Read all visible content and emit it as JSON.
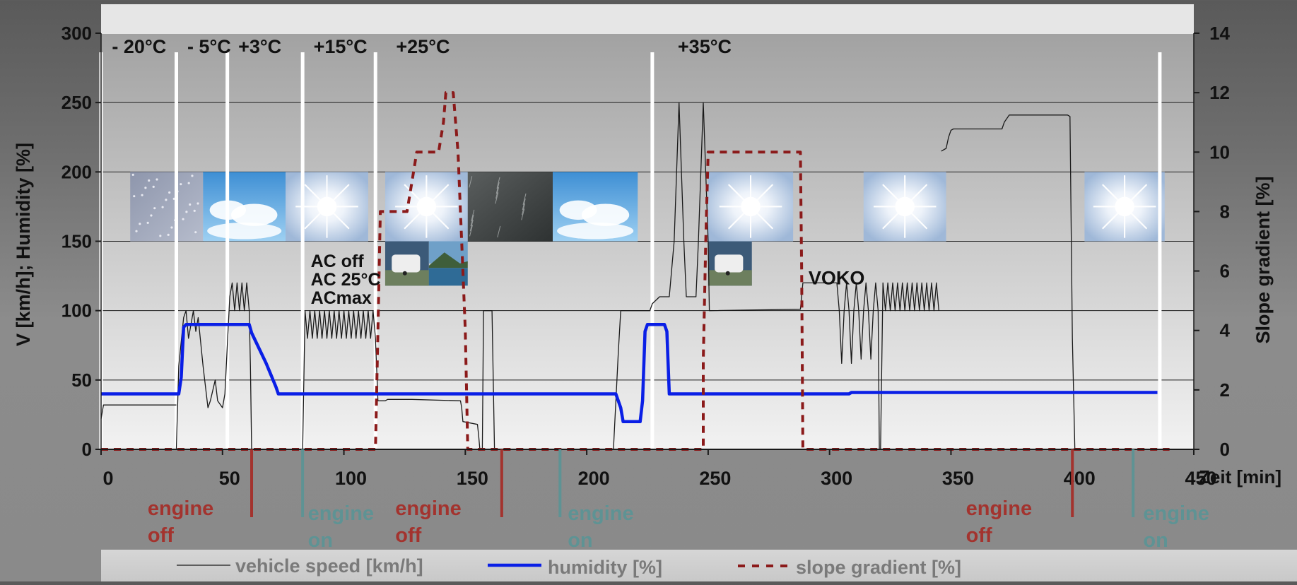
{
  "chart_data": {
    "type": "line",
    "x_axis": {
      "label": "Zeit [min]",
      "range": [
        0,
        450
      ],
      "ticks": [
        0,
        50,
        100,
        150,
        200,
        250,
        300,
        350,
        400,
        450
      ]
    },
    "y_left": {
      "label": "V [km/h];   Humidity  [%]",
      "range": [
        0,
        300
      ],
      "ticks": [
        0,
        50,
        100,
        150,
        200,
        250,
        300
      ]
    },
    "y_right": {
      "label": "Slope gradient [%]",
      "range": [
        0,
        14
      ],
      "ticks": [
        0,
        2,
        4,
        6,
        8,
        10,
        12,
        14
      ]
    },
    "grid": true,
    "legend_position": "bottom",
    "legend": [
      "vehicle speed [km/h]",
      "humidity [%]",
      "slope gradient [%]"
    ],
    "colors": {
      "speed": "#1a1a1a",
      "humidity": "#0a1fe6",
      "slope": "#8b1a1a",
      "engine_off": "#a3332e",
      "engine_on": "#5e9394",
      "divider": "#ffffff"
    },
    "temperature_labels": [
      {
        "text": "- 20°C",
        "x": 1
      },
      {
        "text": "- 5°C",
        "x": 32
      },
      {
        "text": "+3°C",
        "x": 53
      },
      {
        "text": "+15°C",
        "x": 84
      },
      {
        "text": "+25°C",
        "x": 118
      },
      {
        "text": "+35°C",
        "x": 234
      }
    ],
    "dividers": [
      0,
      31,
      52,
      83,
      113,
      227,
      436
    ],
    "engine_events": [
      {
        "x": 62,
        "state": "off",
        "label": [
          "engine",
          "off"
        ],
        "label_x": 18
      },
      {
        "x": 83,
        "state": "on",
        "label": [
          "engine",
          "on"
        ],
        "label_x": 84
      },
      {
        "x": 165,
        "state": "off",
        "label": [
          "engine",
          "off"
        ],
        "label_x": 120
      },
      {
        "x": 189,
        "state": "on",
        "label": [
          "engine",
          "on"
        ],
        "label_x": 191
      },
      {
        "x": 400,
        "state": "off",
        "label": [
          "engine",
          "off"
        ],
        "label_x": 355
      },
      {
        "x": 425,
        "state": "on",
        "label": [
          "engine",
          "on"
        ],
        "label_x": 428
      }
    ],
    "annotations": [
      {
        "lines": [
          "AC off",
          "AC 25°C",
          "ACmax"
        ],
        "x": 84,
        "y": 140
      },
      {
        "text": "VOKO",
        "x": 289,
        "y": 123
      }
    ],
    "weather_images": [
      {
        "kind": "snow",
        "x0": 12,
        "x1": 42,
        "y0": 150,
        "y1": 200
      },
      {
        "kind": "clouds",
        "x0": 42,
        "x1": 76,
        "y0": 150,
        "y1": 200
      },
      {
        "kind": "sun",
        "x0": 76,
        "x1": 110,
        "y0": 150,
        "y1": 200
      },
      {
        "kind": "sun",
        "x0": 117,
        "x1": 151,
        "y0": 150,
        "y1": 200
      },
      {
        "kind": "rain",
        "x0": 151,
        "x1": 186,
        "y0": 150,
        "y1": 200
      },
      {
        "kind": "clouds",
        "x0": 186,
        "x1": 221,
        "y0": 150,
        "y1": 200
      },
      {
        "kind": "sun",
        "x0": 250,
        "x1": 285,
        "y0": 150,
        "y1": 200
      },
      {
        "kind": "sun",
        "x0": 314,
        "x1": 348,
        "y0": 150,
        "y1": 200
      },
      {
        "kind": "sun",
        "x0": 405,
        "x1": 438,
        "y0": 150,
        "y1": 200
      },
      {
        "kind": "caravan",
        "x0": 117,
        "x1": 135,
        "y0": 118,
        "y1": 150
      },
      {
        "kind": "lake",
        "x0": 135,
        "x1": 151,
        "y0": 118,
        "y1": 150
      },
      {
        "kind": "caravan",
        "x0": 250,
        "x1": 268,
        "y0": 118,
        "y1": 150
      }
    ],
    "series": [
      {
        "name": "vehicle speed [km/h]",
        "axis": "left",
        "style": "thin",
        "segments": [
          [
            [
              0,
              22
            ],
            [
              1,
              32
            ],
            [
              31,
              32
            ]
          ],
          [
            [
              31,
              0
            ],
            [
              32,
              60
            ],
            [
              34,
              95
            ],
            [
              35,
              100
            ],
            [
              36,
              80
            ],
            [
              38,
              100
            ],
            [
              39,
              85
            ],
            [
              40,
              95
            ],
            [
              42,
              60
            ],
            [
              44,
              30
            ],
            [
              45,
              35
            ],
            [
              47,
              50
            ],
            [
              48,
              35
            ],
            [
              50,
              30
            ],
            [
              51,
              40
            ],
            [
              52,
              75
            ],
            [
              53,
              110
            ],
            [
              54,
              120
            ],
            [
              55,
              100
            ],
            [
              56,
              120
            ],
            [
              57,
              100
            ],
            [
              58,
              120
            ],
            [
              59,
              100
            ],
            [
              60,
              120
            ],
            [
              61,
              100
            ],
            [
              61.5,
              60
            ],
            [
              62,
              0
            ]
          ],
          [
            [
              83,
              0
            ],
            [
              84,
              100
            ],
            [
              85,
              80
            ],
            [
              86,
              100
            ],
            [
              87,
              80
            ],
            [
              88,
              100
            ],
            [
              89,
              80
            ],
            [
              90,
              100
            ],
            [
              91,
              80
            ],
            [
              92,
              100
            ],
            [
              93,
              80
            ],
            [
              94,
              100
            ],
            [
              95,
              80
            ],
            [
              96,
              100
            ],
            [
              97,
              80
            ],
            [
              98,
              100
            ],
            [
              99,
              80
            ],
            [
              100,
              100
            ],
            [
              101,
              80
            ],
            [
              102,
              100
            ],
            [
              103,
              80
            ],
            [
              104,
              100
            ],
            [
              105,
              80
            ],
            [
              106,
              100
            ],
            [
              107,
              80
            ],
            [
              108,
              100
            ],
            [
              109,
              80
            ],
            [
              110,
              100
            ],
            [
              111,
              80
            ],
            [
              112,
              100
            ],
            [
              113,
              80
            ],
            [
              114,
              35
            ],
            [
              117,
              35
            ],
            [
              118,
              36
            ],
            [
              128,
              36
            ],
            [
              148,
              35
            ],
            [
              148.5,
              30
            ],
            [
              149,
              20
            ],
            [
              155,
              18
            ],
            [
              155.5,
              10
            ],
            [
              156,
              0
            ],
            [
              157,
              0
            ],
            [
              157.5,
              100
            ],
            [
              161,
              100
            ],
            [
              162,
              0
            ]
          ],
          [
            [
              211,
              0
            ],
            [
              213,
              70
            ],
            [
              214,
              100
            ],
            [
              226,
              100
            ],
            [
              227,
              105
            ],
            [
              230,
              110
            ],
            [
              234,
              110
            ],
            [
              236,
              150
            ],
            [
              238,
              250
            ],
            [
              240,
              150
            ],
            [
              241,
              110
            ],
            [
              245,
              110
            ],
            [
              246,
              150
            ],
            [
              248,
              250
            ],
            [
              250,
              150
            ],
            [
              250.5,
              100
            ],
            [
              288,
              101
            ],
            [
              289,
              120
            ],
            [
              303,
              120
            ],
            [
              304,
              100
            ],
            [
              305,
              62
            ],
            [
              306,
              100
            ],
            [
              307,
              120
            ],
            [
              308,
              100
            ],
            [
              309,
              62
            ],
            [
              310,
              100
            ],
            [
              311,
              120
            ],
            [
              312,
              100
            ],
            [
              313,
              65
            ],
            [
              314,
              100
            ],
            [
              315,
              120
            ],
            [
              316,
              100
            ],
            [
              317,
              65
            ],
            [
              318,
              100
            ],
            [
              319,
              120
            ],
            [
              320,
              100
            ],
            [
              320.5,
              0
            ],
            [
              321,
              0
            ],
            [
              322,
              120
            ],
            [
              323,
              100
            ],
            [
              324,
              120
            ],
            [
              325,
              100
            ],
            [
              326,
              120
            ],
            [
              327,
              100
            ],
            [
              328,
              120
            ],
            [
              329,
              100
            ],
            [
              330,
              120
            ],
            [
              331,
              100
            ],
            [
              332,
              120
            ],
            [
              333,
              100
            ],
            [
              334,
              120
            ],
            [
              335,
              100
            ],
            [
              336,
              120
            ],
            [
              337,
              100
            ],
            [
              338,
              120
            ],
            [
              339,
              100
            ],
            [
              340,
              120
            ],
            [
              341,
              100
            ],
            [
              342,
              120
            ],
            [
              343,
              100
            ],
            [
              344,
              120
            ],
            [
              345,
              100
            ]
          ],
          [
            [
              346,
              215
            ],
            [
              348,
              217
            ],
            [
              349,
              225
            ],
            [
              350,
              230
            ],
            [
              351,
              231
            ],
            [
              371,
              231
            ],
            [
              372,
              236
            ],
            [
              374,
              241
            ],
            [
              398,
              241
            ],
            [
              399,
              240
            ],
            [
              400,
              80
            ],
            [
              401,
              0
            ]
          ],
          [
            [
              401,
              0
            ],
            [
              434,
              0
            ]
          ]
        ]
      },
      {
        "name": "humidity [%]",
        "axis": "left",
        "style": "thick",
        "segments": [
          [
            [
              0,
              40
            ],
            [
              32,
              40
            ],
            [
              33,
              52
            ],
            [
              34,
              88
            ],
            [
              35,
              90
            ],
            [
              61,
              90
            ],
            [
              62,
              84
            ],
            [
              68,
              62
            ],
            [
              72,
              45
            ],
            [
              73,
              40
            ],
            [
              212,
              40
            ],
            [
              214,
              30
            ],
            [
              215,
              20
            ],
            [
              222,
              20
            ],
            [
              223,
              35
            ],
            [
              224,
              85
            ],
            [
              225,
              90
            ],
            [
              232,
              90
            ],
            [
              233,
              85
            ],
            [
              234,
              40
            ],
            [
              308,
              40
            ],
            [
              309,
              41
            ],
            [
              435,
              41
            ]
          ]
        ]
      },
      {
        "name": "slope gradient [%]",
        "axis": "right",
        "style": "dashed",
        "segments": [
          [
            [
              0,
              0
            ],
            [
              113,
              0
            ],
            [
              114,
              4
            ],
            [
              115,
              8
            ],
            [
              126,
              8
            ],
            [
              128,
              9
            ],
            [
              130,
              10
            ],
            [
              139,
              10
            ],
            [
              141,
              11
            ],
            [
              142,
              12
            ],
            [
              145,
              12
            ],
            [
              147,
              10
            ],
            [
              149,
              6
            ],
            [
              150,
              4
            ],
            [
              151,
              0
            ],
            [
              248,
              0
            ],
            [
              248,
              3
            ],
            [
              249,
              7
            ],
            [
              250,
              10
            ],
            [
              288,
              10
            ],
            [
              288.5,
              6
            ],
            [
              289,
              0
            ],
            [
              440,
              0
            ]
          ]
        ]
      }
    ]
  }
}
